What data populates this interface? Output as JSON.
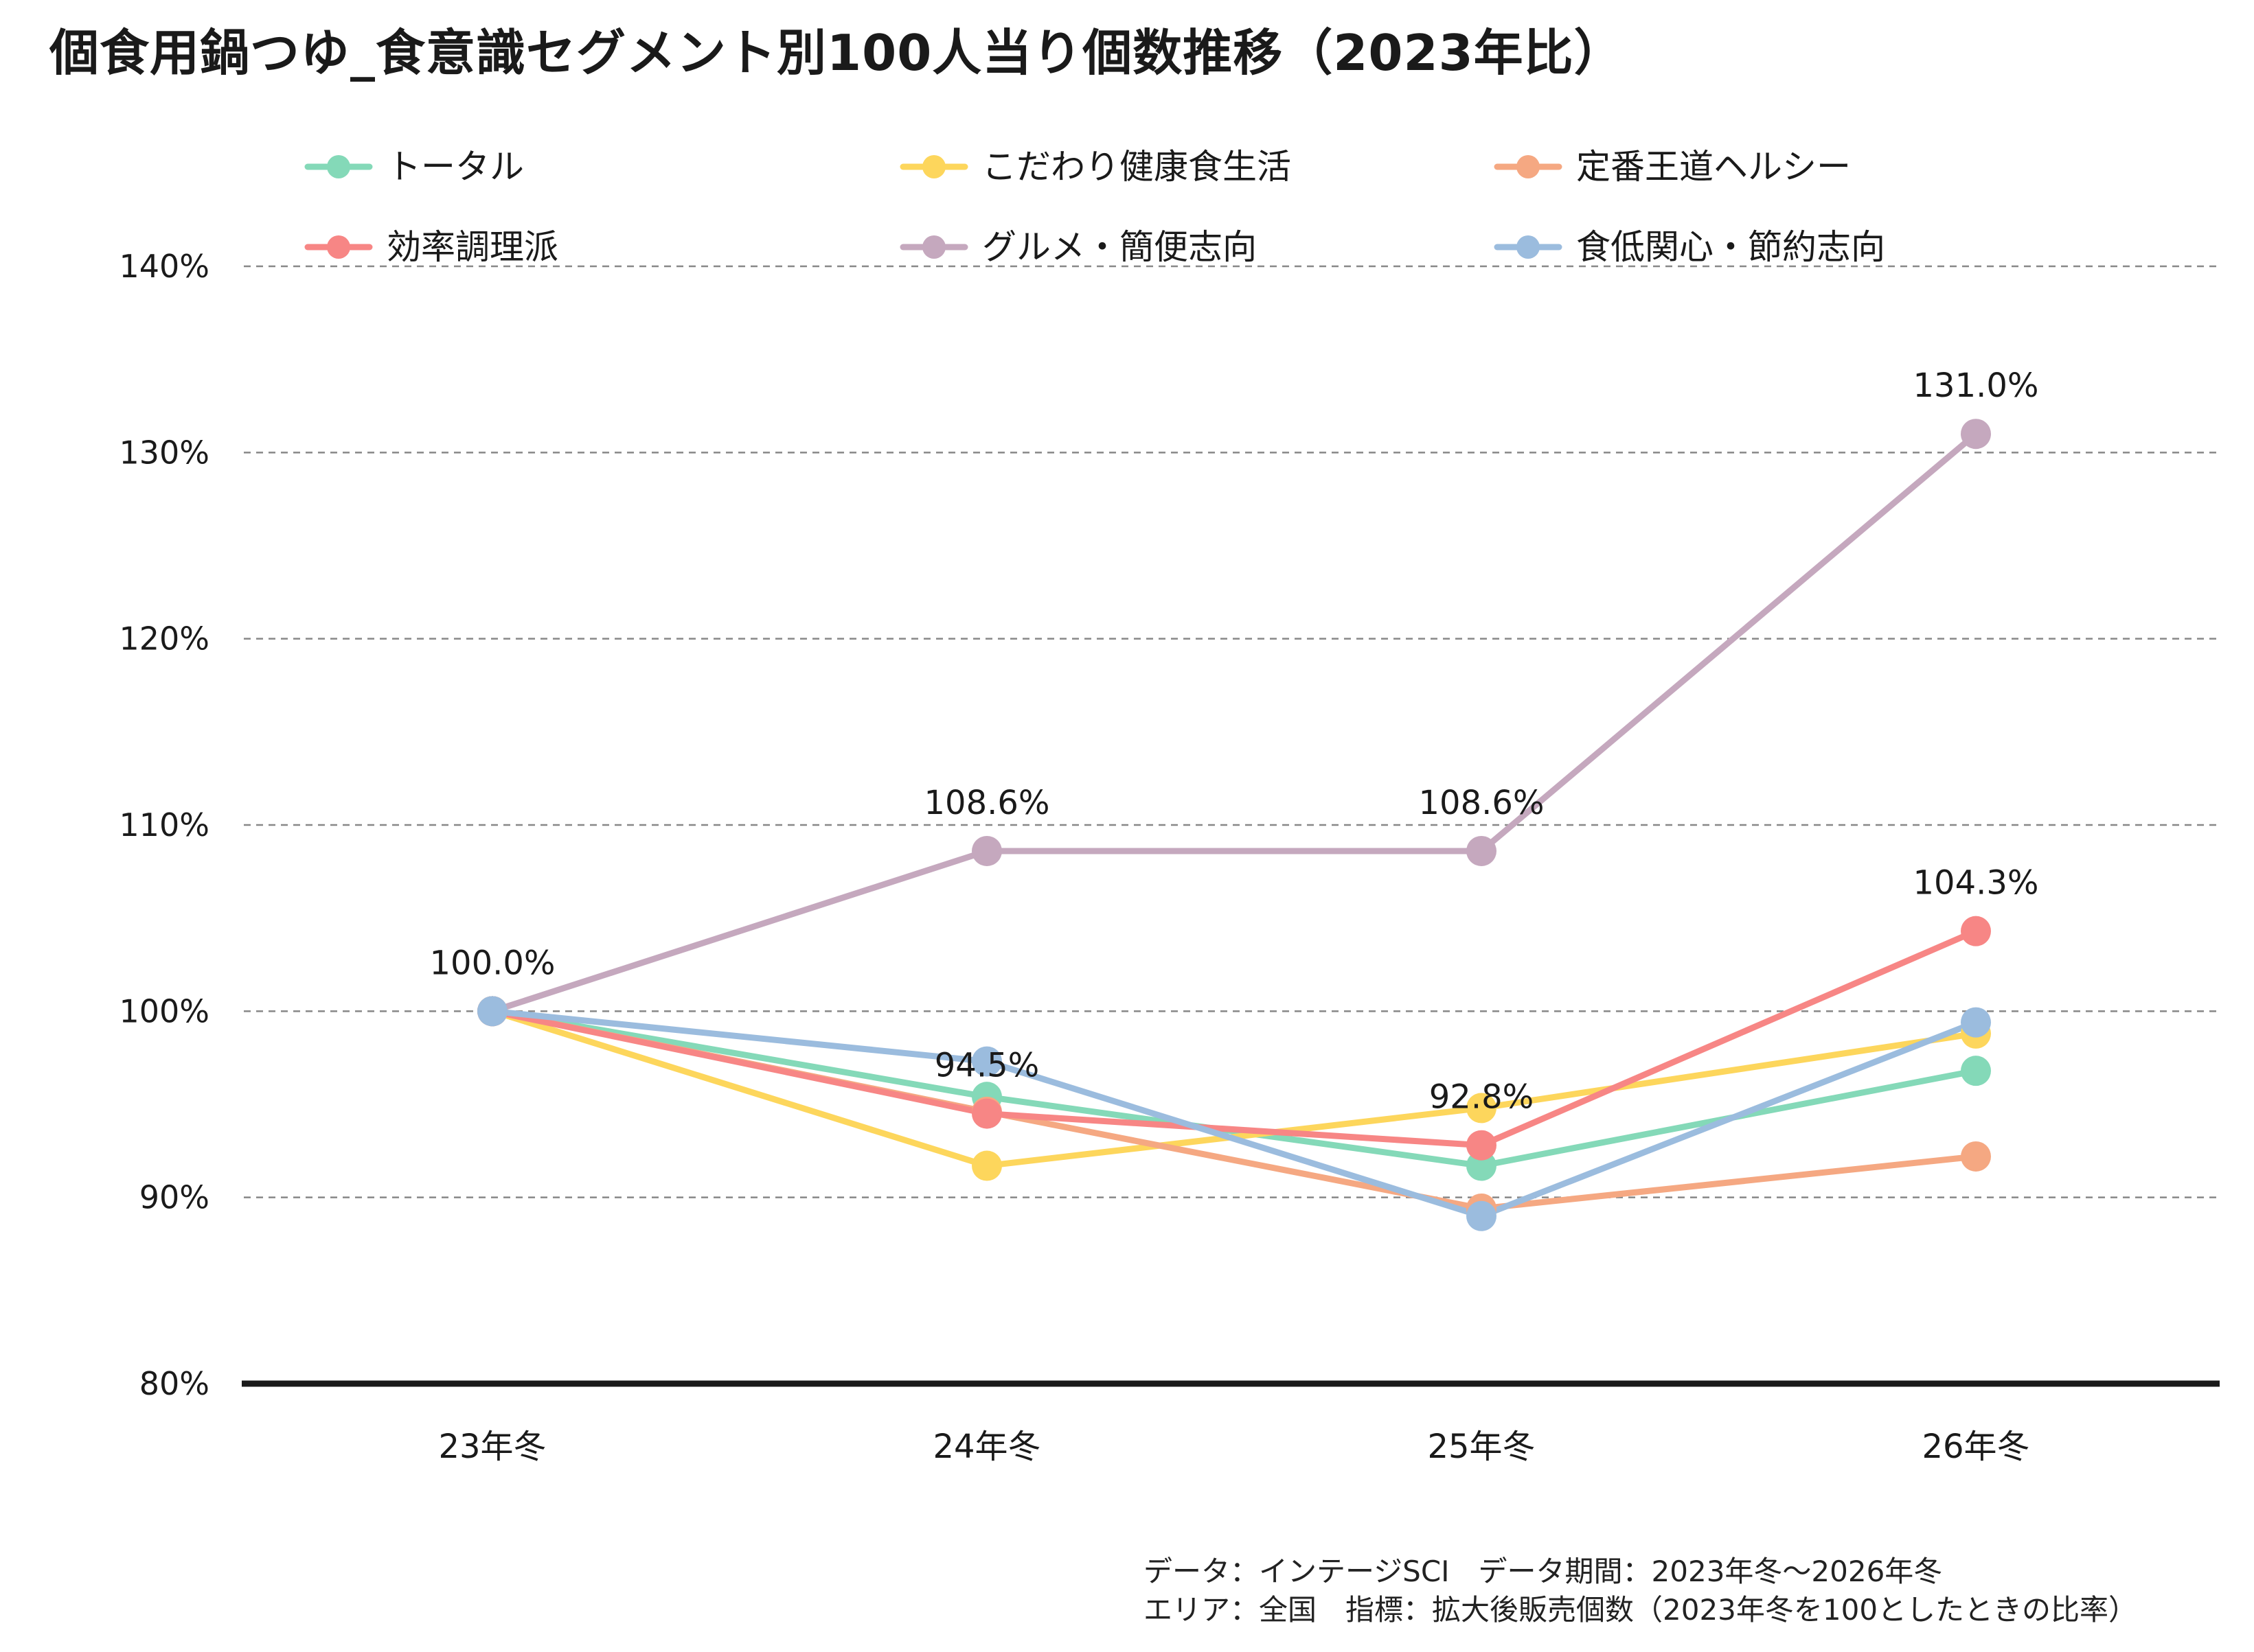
{
  "chart_data": {
    "type": "line",
    "title": "個食用鍋つゆ_食意識セグメント別100人当り個数推移（2023年比）",
    "categories": [
      "23年冬",
      "24年冬",
      "25年冬",
      "26年冬"
    ],
    "ylim": [
      80,
      140
    ],
    "yticks": [
      "80%",
      "90%",
      "100%",
      "110%",
      "120%",
      "130%",
      "140%"
    ],
    "ytick_values": [
      80,
      90,
      100,
      110,
      120,
      130,
      140
    ],
    "grid": true,
    "legend_position": "top",
    "series": [
      {
        "name": "トータル",
        "color": "#84D9B8",
        "values": [
          100.0,
          95.4,
          91.7,
          96.8
        ]
      },
      {
        "name": "こだわり健康食生活",
        "color": "#FDD65C",
        "values": [
          100.0,
          91.7,
          94.8,
          98.8
        ]
      },
      {
        "name": "定番王道ヘルシー",
        "color": "#F5A882",
        "values": [
          100.0,
          94.6,
          89.4,
          92.2
        ]
      },
      {
        "name": "効率調理派",
        "color": "#F78685",
        "values": [
          100.0,
          94.5,
          92.8,
          104.3
        ]
      },
      {
        "name": "グルメ・簡便志向",
        "color": "#C5A8BE",
        "values": [
          100.0,
          108.6,
          108.6,
          131.0
        ]
      },
      {
        "name": "食低関心・節約志向",
        "color": "#9BBCDE",
        "values": [
          100.0,
          97.3,
          89.0,
          99.4
        ]
      }
    ],
    "annotations": [
      {
        "text": "100.0%",
        "category": 0,
        "value": 100.0
      },
      {
        "text": "108.6%",
        "category": 1,
        "value": 108.6
      },
      {
        "text": "94.5%",
        "category": 1,
        "value": 94.5
      },
      {
        "text": "108.6%",
        "category": 2,
        "value": 108.6
      },
      {
        "text": "92.8%",
        "category": 2,
        "value": 92.8
      },
      {
        "text": "131.0%",
        "category": 3,
        "value": 131.0
      },
      {
        "text": "104.3%",
        "category": 3,
        "value": 104.3
      }
    ]
  },
  "footnote": {
    "line1": "データ：インテージSCI　データ期間：2023年冬〜2026年冬",
    "line2": "エリア：全国　指標：拡大後販売個数（2023年冬を100としたときの比率）"
  }
}
